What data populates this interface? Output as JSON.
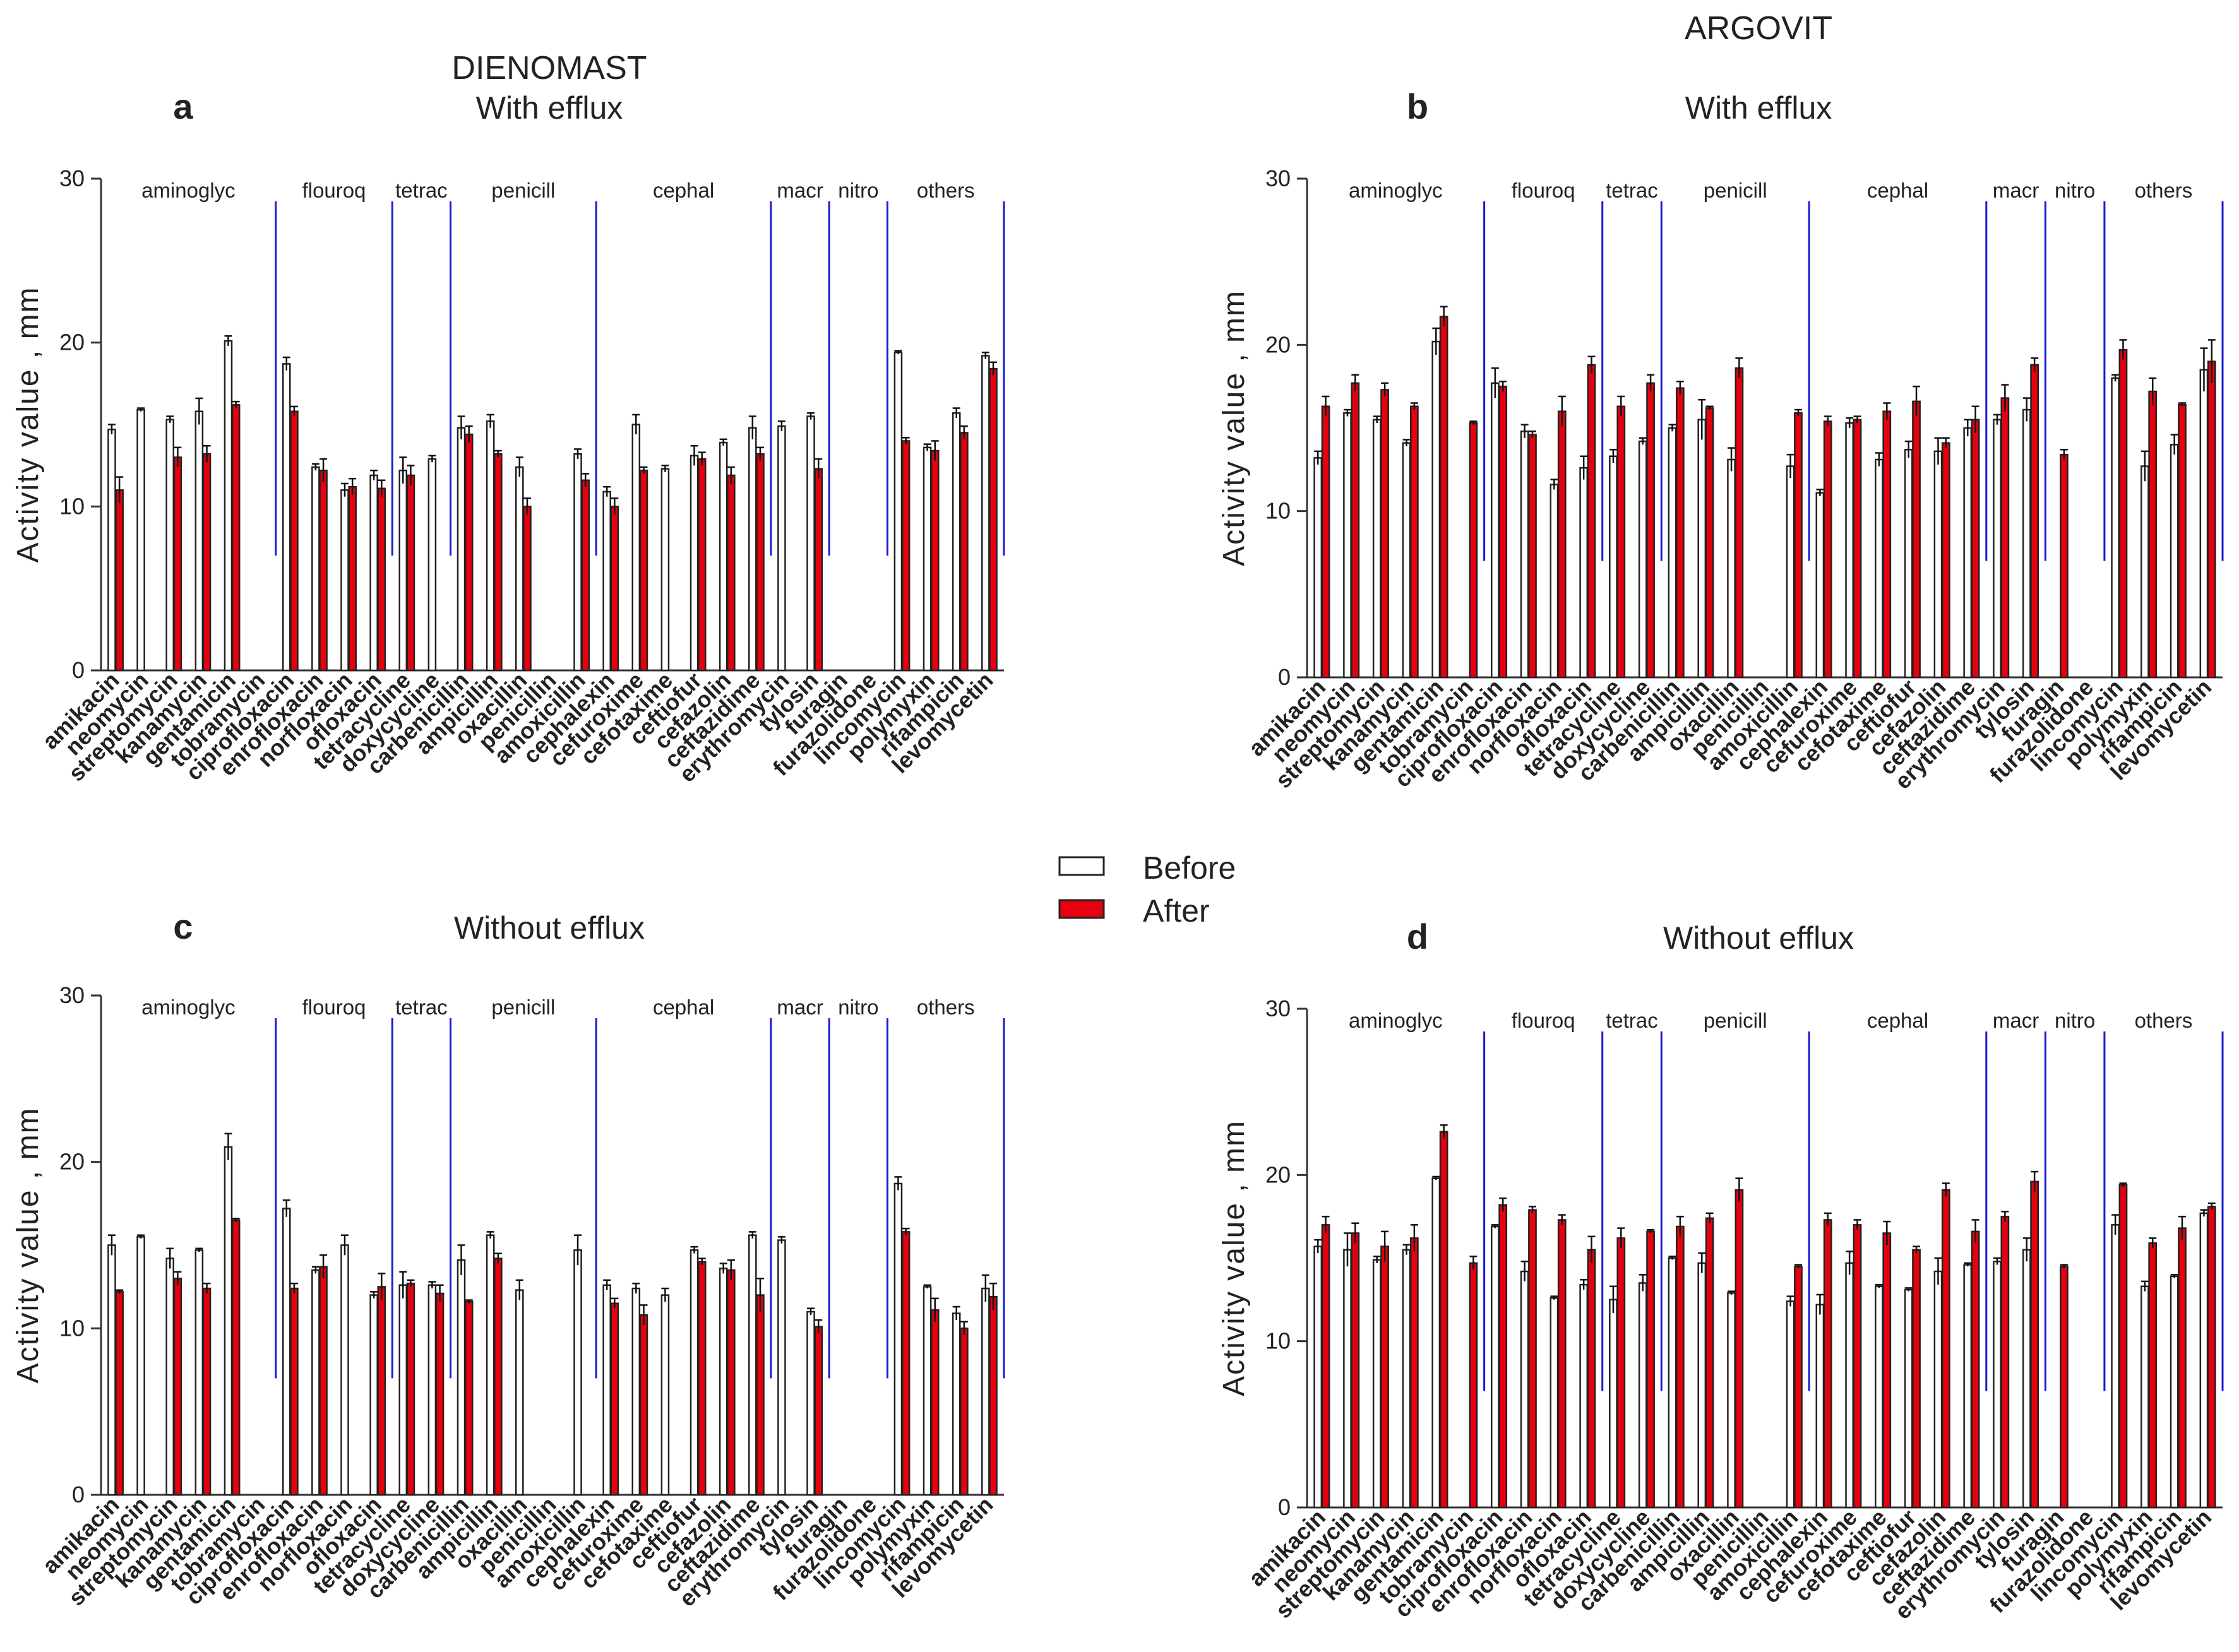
{
  "figure": {
    "headers": {
      "left": "DIENOMAST",
      "right": "ARGOVIT"
    },
    "legend": {
      "before": "Before",
      "after": "After"
    },
    "colors": {
      "before": "#ffffff",
      "after": "#e8000f",
      "separator": "#1a1acc",
      "axis": "#333333",
      "bar_edge": "#222222"
    }
  },
  "chart_data": [
    {
      "panel": "a",
      "title": "With efflux",
      "product": "DIENOMAST",
      "type": "bar",
      "ylabel": "Activity value , mm",
      "ylim": [
        0,
        30
      ],
      "yticks": [
        0,
        10,
        20,
        30
      ],
      "categories": [
        "amikacin",
        "neomycin",
        "streptomycin",
        "kanamycin",
        "gentamicin",
        "tobramycin",
        "ciprofloxacin",
        "enrofloxacin",
        "norfloxacin",
        "ofloxacin",
        "tetracycline",
        "doxycycline",
        "carbenicillin",
        "ampicillin",
        "oxacillin",
        "penicillin",
        "amoxicillin",
        "cephalexin",
        "cefuroxime",
        "cefotaxime",
        "ceftiofur",
        "cefazolin",
        "ceftazidime",
        "erythromycin",
        "tylosin",
        "furagin",
        "furazolidone",
        "lincomycin",
        "polymyxin",
        "rifampicin",
        "levomycetin"
      ],
      "groups": [
        {
          "label": "aminoglyc",
          "start": 0,
          "end": 5
        },
        {
          "label": "flouroq",
          "start": 6,
          "end": 9
        },
        {
          "label": "tetrac",
          "start": 10,
          "end": 11
        },
        {
          "label": "penicill",
          "start": 12,
          "end": 16
        },
        {
          "label": "cephal",
          "start": 17,
          "end": 22
        },
        {
          "label": "macr",
          "start": 23,
          "end": 24
        },
        {
          "label": "nitro",
          "start": 25,
          "end": 26
        },
        {
          "label": "others",
          "start": 27,
          "end": 30
        }
      ],
      "series": [
        {
          "name": "Before",
          "values": [
            14.7,
            15.9,
            15.3,
            15.8,
            20.1,
            null,
            18.7,
            12.4,
            11.0,
            11.9,
            12.2,
            12.9,
            14.8,
            15.2,
            12.4,
            null,
            13.2,
            10.9,
            15.0,
            12.3,
            13.1,
            13.9,
            14.8,
            14.9,
            15.5,
            null,
            null,
            19.4,
            13.6,
            15.7,
            19.2
          ],
          "errors": [
            0.3,
            0.1,
            0.2,
            0.8,
            0.3,
            0,
            0.4,
            0.2,
            0.4,
            0.3,
            0.8,
            0.2,
            0.7,
            0.4,
            0.6,
            0,
            0.3,
            0.3,
            0.6,
            0.2,
            0.6,
            0.2,
            0.7,
            0.3,
            0.2,
            0,
            0,
            0.1,
            0.2,
            0.3,
            0.2
          ]
        },
        {
          "name": "After",
          "values": [
            11.0,
            null,
            13.0,
            13.2,
            16.2,
            null,
            15.8,
            12.2,
            11.2,
            11.1,
            11.9,
            null,
            14.4,
            13.2,
            10.0,
            null,
            11.6,
            10.0,
            12.2,
            null,
            12.9,
            11.9,
            13.2,
            null,
            12.3,
            null,
            null,
            14.0,
            13.4,
            14.5,
            18.4
          ],
          "errors": [
            0.8,
            0,
            0.6,
            0.5,
            0.2,
            0,
            0.3,
            0.7,
            0.5,
            0.5,
            0.6,
            0,
            0.5,
            0.2,
            0.5,
            0,
            0.4,
            0.5,
            0.2,
            0,
            0.4,
            0.5,
            0.4,
            0,
            0.6,
            0,
            0,
            0.2,
            0.6,
            0.4,
            0.4
          ]
        }
      ]
    },
    {
      "panel": "b",
      "title": "With efflux",
      "product": "ARGOVIT",
      "type": "bar",
      "ylabel": "Activity value , mm",
      "ylim": [
        0,
        30
      ],
      "yticks": [
        0,
        10,
        20,
        30
      ],
      "categories": [
        "amikacin",
        "neomycin",
        "streptomycin",
        "kanamycin",
        "gentamicin",
        "tobramycin",
        "ciprofloxacin",
        "enrofloxacin",
        "norfloxacin",
        "ofloxacin",
        "tetracycline",
        "doxycycline",
        "carbenicillin",
        "ampicillin",
        "oxacillin",
        "penicillin",
        "amoxicillin",
        "cephalexin",
        "cefuroxime",
        "cefotaxime",
        "ceftiofur",
        "cefazolin",
        "ceftazidime",
        "erythromycin",
        "tylosin",
        "furagin",
        "furazolidone",
        "lincomycin",
        "polymyxin",
        "rifampicin",
        "levomycetin"
      ],
      "groups": [
        {
          "label": "aminoglyc",
          "start": 0,
          "end": 5
        },
        {
          "label": "flouroq",
          "start": 6,
          "end": 9
        },
        {
          "label": "tetrac",
          "start": 10,
          "end": 11
        },
        {
          "label": "penicill",
          "start": 12,
          "end": 16
        },
        {
          "label": "cephal",
          "start": 17,
          "end": 22
        },
        {
          "label": "macr",
          "start": 23,
          "end": 24
        },
        {
          "label": "nitro",
          "start": 25,
          "end": 26
        },
        {
          "label": "others",
          "start": 27,
          "end": 30
        }
      ],
      "series": [
        {
          "name": "Before",
          "values": [
            13.2,
            15.9,
            15.5,
            14.1,
            20.2,
            null,
            17.7,
            14.8,
            11.6,
            12.6,
            13.3,
            14.2,
            15.0,
            15.5,
            13.1,
            null,
            12.7,
            11.1,
            15.3,
            13.1,
            13.7,
            13.6,
            15.0,
            15.5,
            16.1,
            null,
            null,
            18.0,
            12.7,
            14.0,
            18.5
          ],
          "errors": [
            0.4,
            0.2,
            0.2,
            0.2,
            0.8,
            0,
            0.9,
            0.4,
            0.3,
            0.7,
            0.4,
            0.2,
            0.2,
            1.2,
            0.7,
            0,
            0.7,
            0.2,
            0.3,
            0.4,
            0.5,
            0.8,
            0.5,
            0.3,
            0.7,
            0,
            0,
            0.2,
            0.9,
            0.6,
            1.3
          ]
        },
        {
          "name": "After",
          "values": [
            16.3,
            17.7,
            17.3,
            16.3,
            21.7,
            15.3,
            17.5,
            14.6,
            16.0,
            18.8,
            16.3,
            17.7,
            17.4,
            16.2,
            18.6,
            null,
            15.9,
            15.4,
            15.5,
            16.0,
            16.6,
            14.1,
            15.5,
            16.8,
            18.8,
            13.4,
            null,
            19.7,
            17.2,
            16.4,
            19.0
          ],
          "errors": [
            0.6,
            0.5,
            0.4,
            0.2,
            0.6,
            0.1,
            0.3,
            0.2,
            0.9,
            0.5,
            0.6,
            0.5,
            0.4,
            0.1,
            0.6,
            0,
            0.2,
            0.3,
            0.2,
            0.5,
            0.9,
            0.3,
            0.8,
            0.8,
            0.4,
            0.3,
            0,
            0.6,
            0.8,
            0.1,
            1.3
          ]
        }
      ]
    },
    {
      "panel": "c",
      "title": "Without efflux",
      "product": "DIENOMAST",
      "type": "bar",
      "ylabel": "Activity value , mm",
      "ylim": [
        0,
        30
      ],
      "yticks": [
        0,
        10,
        20,
        30
      ],
      "categories": [
        "amikacin",
        "neomycin",
        "streptomycin",
        "kanamycin",
        "gentamicin",
        "tobramycin",
        "ciprofloxacin",
        "enrofloxacin",
        "norfloxacin",
        "ofloxacin",
        "tetracycline",
        "doxycycline",
        "carbenicillin",
        "ampicillin",
        "oxacillin",
        "penicillin",
        "amoxicillin",
        "cephalexin",
        "cefuroxime",
        "cefotaxime",
        "ceftiofur",
        "cefazolin",
        "ceftazidime",
        "erythromycin",
        "tylosin",
        "furagin",
        "furazolidone",
        "lincomycin",
        "polymyxin",
        "rifampicin",
        "levomycetin"
      ],
      "groups": [
        {
          "label": "aminoglyc",
          "start": 0,
          "end": 5
        },
        {
          "label": "flouroq",
          "start": 6,
          "end": 9
        },
        {
          "label": "tetrac",
          "start": 10,
          "end": 11
        },
        {
          "label": "penicill",
          "start": 12,
          "end": 16
        },
        {
          "label": "cephal",
          "start": 17,
          "end": 22
        },
        {
          "label": "macr",
          "start": 23,
          "end": 24
        },
        {
          "label": "nitro",
          "start": 25,
          "end": 26
        },
        {
          "label": "others",
          "start": 27,
          "end": 30
        }
      ],
      "series": [
        {
          "name": "Before",
          "values": [
            15.0,
            15.5,
            14.2,
            14.7,
            20.9,
            null,
            17.2,
            13.5,
            15.0,
            12.0,
            12.6,
            12.6,
            14.1,
            15.6,
            12.3,
            null,
            14.7,
            12.6,
            12.4,
            12.0,
            14.7,
            13.6,
            15.6,
            15.3,
            11.0,
            null,
            null,
            18.7,
            12.5,
            10.9,
            12.4
          ],
          "errors": [
            0.6,
            0.1,
            0.6,
            0.1,
            0.8,
            0,
            0.5,
            0.2,
            0.6,
            0.2,
            0.8,
            0.2,
            0.9,
            0.2,
            0.6,
            0,
            0.9,
            0.3,
            0.3,
            0.4,
            0.2,
            0.3,
            0.2,
            0.2,
            0.2,
            0,
            0,
            0.4,
            0.1,
            0.4,
            0.8
          ]
        },
        {
          "name": "After",
          "values": [
            12.2,
            null,
            13.0,
            12.4,
            16.5,
            null,
            12.4,
            13.7,
            null,
            12.5,
            12.7,
            12.1,
            11.6,
            14.2,
            null,
            null,
            null,
            11.5,
            10.8,
            null,
            14.0,
            13.5,
            12.0,
            null,
            10.1,
            null,
            null,
            15.8,
            11.1,
            10.0,
            11.9
          ],
          "errors": [
            0.1,
            0,
            0.4,
            0.3,
            0.1,
            0,
            0.3,
            0.7,
            0,
            0.8,
            0.2,
            0.5,
            0.1,
            0.3,
            0,
            0,
            0,
            0.3,
            0.6,
            0,
            0.2,
            0.6,
            1.0,
            0,
            0.4,
            0,
            0,
            0.2,
            0.7,
            0.4,
            0.8
          ]
        }
      ]
    },
    {
      "panel": "d",
      "title": "Without efflux",
      "product": "ARGOVIT",
      "type": "bar",
      "ylabel": "Activity value , mm",
      "ylim": [
        0,
        30
      ],
      "yticks": [
        0,
        10,
        20,
        30
      ],
      "categories": [
        "amikacin",
        "neomycin",
        "streptomycin",
        "kanamycin",
        "gentamicin",
        "tobramycin",
        "ciprofloxacin",
        "enrofloxacin",
        "norfloxacin",
        "ofloxacin",
        "tetracycline",
        "doxycycline",
        "carbenicillin",
        "ampicillin",
        "oxacillin",
        "penicillin",
        "amoxicillin",
        "cephalexin",
        "cefuroxime",
        "cefotaxime",
        "ceftiofur",
        "cefazolin",
        "ceftazidime",
        "erythromycin",
        "tylosin",
        "furagin",
        "furazolidone",
        "lincomycin",
        "polymyxin",
        "rifampicin",
        "levomycetin"
      ],
      "groups": [
        {
          "label": "aminoglyc",
          "start": 0,
          "end": 5
        },
        {
          "label": "flouroq",
          "start": 6,
          "end": 9
        },
        {
          "label": "tetrac",
          "start": 10,
          "end": 11
        },
        {
          "label": "penicill",
          "start": 12,
          "end": 16
        },
        {
          "label": "cephal",
          "start": 17,
          "end": 22
        },
        {
          "label": "macr",
          "start": 23,
          "end": 24
        },
        {
          "label": "nitro",
          "start": 25,
          "end": 26
        },
        {
          "label": "others",
          "start": 27,
          "end": 30
        }
      ],
      "series": [
        {
          "name": "Before",
          "values": [
            15.7,
            15.5,
            14.9,
            15.5,
            19.8,
            null,
            16.9,
            14.2,
            12.6,
            13.4,
            12.5,
            13.5,
            15.0,
            14.7,
            12.9,
            null,
            12.4,
            12.2,
            14.7,
            13.3,
            13.1,
            14.2,
            14.6,
            14.8,
            15.5,
            null,
            null,
            17.0,
            13.3,
            13.9,
            17.7
          ],
          "errors": [
            0.4,
            1.0,
            0.2,
            0.3,
            0.1,
            0,
            0.1,
            0.6,
            0.1,
            0.3,
            0.8,
            0.5,
            0.1,
            0.6,
            0.1,
            0,
            0.3,
            0.6,
            0.7,
            0.1,
            0.1,
            0.8,
            0.1,
            0.2,
            0.7,
            0,
            0,
            0.6,
            0.3,
            0.1,
            0.2
          ]
        },
        {
          "name": "After",
          "values": [
            17.0,
            16.5,
            15.7,
            16.2,
            22.6,
            14.7,
            18.2,
            17.9,
            17.3,
            15.5,
            16.2,
            16.6,
            16.9,
            17.4,
            19.1,
            null,
            14.5,
            17.3,
            17.0,
            16.5,
            15.5,
            19.1,
            16.6,
            17.5,
            19.6,
            14.5,
            null,
            19.4,
            15.9,
            16.8,
            18.1
          ],
          "errors": [
            0.5,
            0.6,
            0.9,
            0.8,
            0.4,
            0.4,
            0.4,
            0.2,
            0.3,
            0.8,
            0.6,
            0.1,
            0.6,
            0.3,
            0.7,
            0,
            0.1,
            0.4,
            0.3,
            0.7,
            0.2,
            0.4,
            0.7,
            0.3,
            0.6,
            0.1,
            0,
            0.1,
            0.3,
            0.7,
            0.2
          ]
        }
      ]
    }
  ]
}
